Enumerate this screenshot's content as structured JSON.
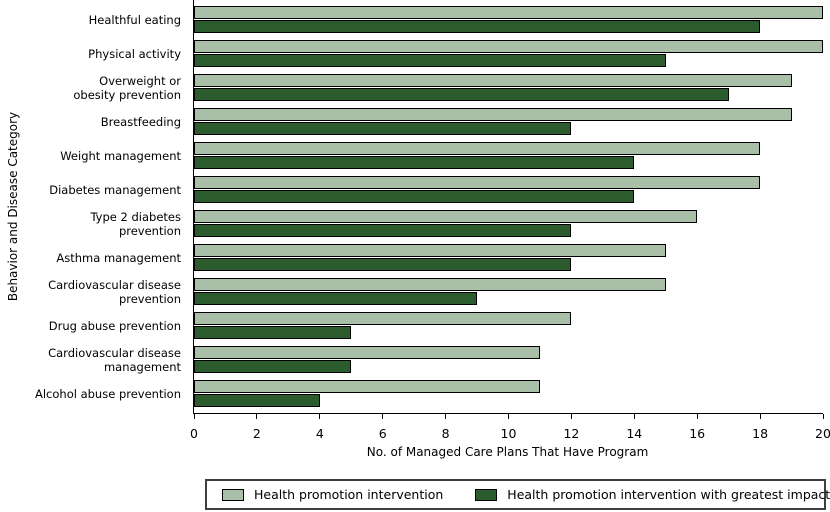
{
  "chart_data": {
    "type": "bar",
    "orientation": "horizontal",
    "title": "",
    "xlabel": "No. of Managed Care Plans That Have Program",
    "ylabel": "Behavior and Disease Category",
    "xlim": [
      0,
      20
    ],
    "xticks": [
      0,
      2,
      4,
      6,
      8,
      10,
      12,
      14,
      16,
      18,
      20
    ],
    "grid": false,
    "legend_position": "bottom",
    "categories": [
      "Healthful eating",
      "Physical activity",
      "Overweight or obesity prevention",
      "Breastfeeding",
      "Weight management",
      "Diabetes management",
      "Type 2 diabetes prevention",
      "Asthma management",
      "Cardiovascular disease prevention",
      "Drug abuse prevention",
      "Cardiovascular disease management",
      "Alcohol abuse prevention"
    ],
    "category_label_lines": [
      [
        "Healthful eating"
      ],
      [
        "Physical activity"
      ],
      [
        "Overweight or",
        "obesity prevention"
      ],
      [
        "Breastfeeding"
      ],
      [
        "Weight management"
      ],
      [
        "Diabetes management"
      ],
      [
        "Type 2 diabetes",
        "prevention"
      ],
      [
        "Asthma management"
      ],
      [
        "Cardiovascular disease",
        "prevention"
      ],
      [
        "Drug abuse prevention"
      ],
      [
        "Cardiovascular disease",
        "management"
      ],
      [
        "Alcohol abuse prevention"
      ]
    ],
    "series": [
      {
        "name": "Health promotion intervention",
        "color": "#aabfa8",
        "values": [
          20,
          20,
          19,
          19,
          18,
          18,
          16,
          15,
          15,
          12,
          11,
          11
        ]
      },
      {
        "name": "Health promotion intervention with greatest impact",
        "color": "#2c5c2e",
        "values": [
          18,
          15,
          17,
          12,
          14,
          14,
          12,
          12,
          9,
          5,
          5,
          4
        ]
      }
    ],
    "colors": {
      "bar_border": "#000000",
      "axis": "#000000",
      "text": "#000000",
      "legend_border": "#3f3f3f",
      "background": "#ffffff"
    }
  }
}
